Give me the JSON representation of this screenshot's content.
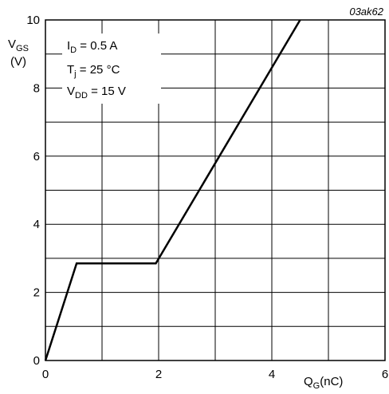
{
  "chart_data": {
    "type": "line",
    "figure_ref": "03ak62",
    "x": [
      0,
      0.55,
      1.95,
      4.5
    ],
    "series": [
      {
        "values": [
          0,
          2.85,
          2.85,
          10
        ]
      }
    ],
    "xlabel": {
      "main": "Q",
      "sub": "G",
      "unit": "(nC)"
    },
    "ylabel": {
      "main": "V",
      "sub": "GS",
      "unit": "(V)"
    },
    "xlim": [
      0,
      6
    ],
    "ylim": [
      0,
      10
    ],
    "x_ticks": [
      "0",
      "2",
      "4",
      "6"
    ],
    "y_ticks": [
      "0",
      "2",
      "4",
      "6",
      "8",
      "10"
    ],
    "grid": true,
    "annotations": [
      {
        "main": "I",
        "sub": "D",
        "rest": " = 0.5 A"
      },
      {
        "main": "T",
        "sub": "j",
        "rest": " = 25 °C"
      },
      {
        "main": "V",
        "sub": "DD",
        "rest": " = 15 V"
      }
    ]
  }
}
